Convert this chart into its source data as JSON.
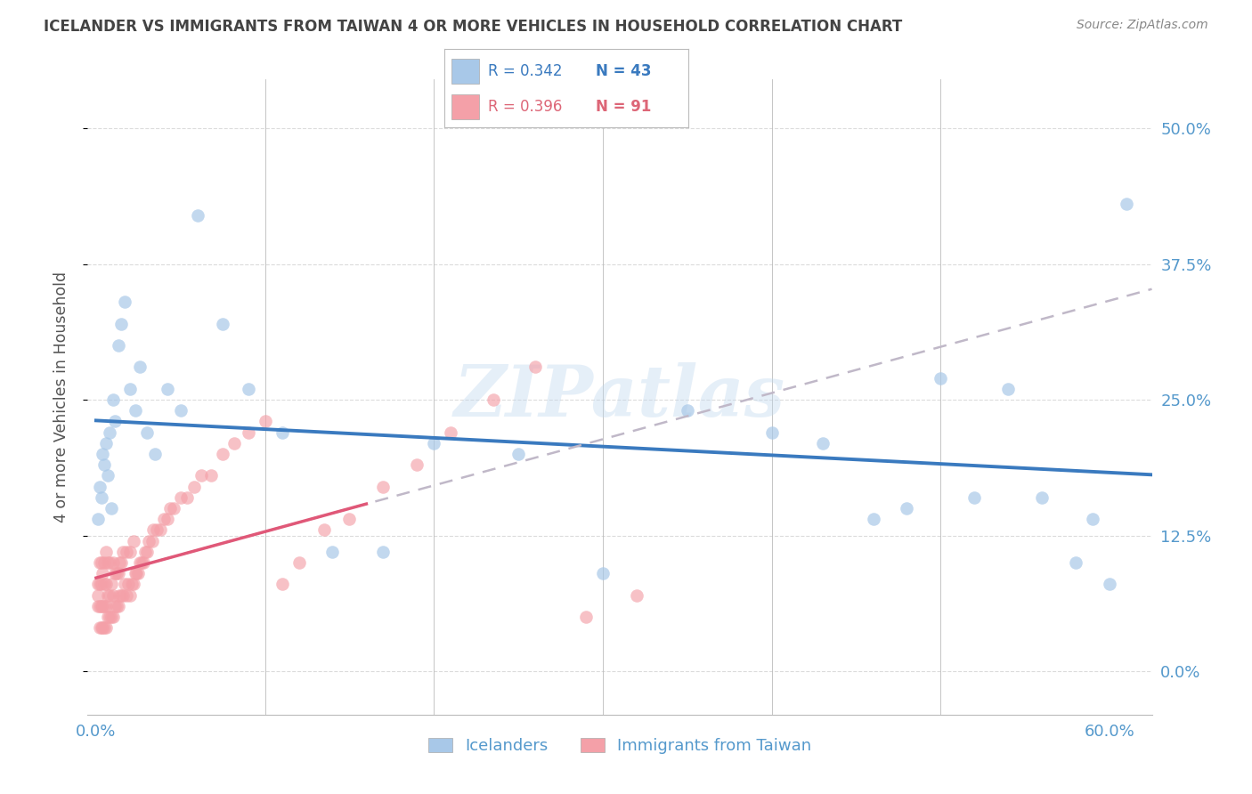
{
  "title": "ICELANDER VS IMMIGRANTS FROM TAIWAN 4 OR MORE VEHICLES IN HOUSEHOLD CORRELATION CHART",
  "source": "Source: ZipAtlas.com",
  "ylabel": "4 or more Vehicles in Household",
  "x_tick_vals": [
    0.0,
    0.6
  ],
  "x_tick_labels": [
    "0.0%",
    "60.0%"
  ],
  "y_tick_vals": [
    0.0,
    0.125,
    0.25,
    0.375,
    0.5
  ],
  "y_tick_labels": [
    "0.0%",
    "12.5%",
    "25.0%",
    "37.5%",
    "50.0%"
  ],
  "xlim": [
    -0.005,
    0.625
  ],
  "ylim": [
    -0.04,
    0.545
  ],
  "legend_icelander": "Icelanders",
  "legend_taiwan": "Immigrants from Taiwan",
  "r_icelander": "R = 0.342",
  "n_icelander": "N = 43",
  "r_taiwan": "R = 0.396",
  "n_taiwan": "N = 91",
  "blue_scatter": "#a8c8e8",
  "pink_scatter": "#f4a0a8",
  "blue_line": "#3a7abf",
  "pink_line": "#e05878",
  "dashed_line": "#c0b8c8",
  "watermark": "ZIPatlas",
  "grid_color": "#d8d8d8",
  "axis_label_color": "#5599cc",
  "title_color": "#444444",
  "source_color": "#888888",
  "ice_x": [
    0.001,
    0.002,
    0.003,
    0.004,
    0.005,
    0.006,
    0.007,
    0.008,
    0.009,
    0.01,
    0.011,
    0.013,
    0.015,
    0.017,
    0.02,
    0.023,
    0.026,
    0.03,
    0.035,
    0.042,
    0.05,
    0.06,
    0.075,
    0.09,
    0.11,
    0.14,
    0.17,
    0.2,
    0.25,
    0.3,
    0.35,
    0.4,
    0.43,
    0.46,
    0.48,
    0.5,
    0.52,
    0.54,
    0.56,
    0.58,
    0.59,
    0.6,
    0.61
  ],
  "ice_y": [
    0.14,
    0.17,
    0.16,
    0.2,
    0.19,
    0.21,
    0.18,
    0.22,
    0.15,
    0.25,
    0.23,
    0.3,
    0.32,
    0.34,
    0.26,
    0.24,
    0.28,
    0.22,
    0.2,
    0.26,
    0.24,
    0.42,
    0.32,
    0.26,
    0.22,
    0.11,
    0.11,
    0.21,
    0.2,
    0.09,
    0.24,
    0.22,
    0.21,
    0.14,
    0.15,
    0.27,
    0.16,
    0.26,
    0.16,
    0.1,
    0.14,
    0.08,
    0.43
  ],
  "tai_x": [
    0.001,
    0.001,
    0.001,
    0.002,
    0.002,
    0.002,
    0.002,
    0.003,
    0.003,
    0.003,
    0.003,
    0.004,
    0.004,
    0.004,
    0.005,
    0.005,
    0.005,
    0.005,
    0.006,
    0.006,
    0.006,
    0.006,
    0.007,
    0.007,
    0.007,
    0.008,
    0.008,
    0.008,
    0.009,
    0.009,
    0.01,
    0.01,
    0.01,
    0.011,
    0.011,
    0.012,
    0.012,
    0.013,
    0.013,
    0.014,
    0.014,
    0.015,
    0.015,
    0.016,
    0.016,
    0.017,
    0.018,
    0.018,
    0.019,
    0.02,
    0.02,
    0.021,
    0.022,
    0.022,
    0.023,
    0.024,
    0.025,
    0.026,
    0.027,
    0.028,
    0.029,
    0.03,
    0.031,
    0.033,
    0.034,
    0.036,
    0.038,
    0.04,
    0.042,
    0.044,
    0.046,
    0.05,
    0.054,
    0.058,
    0.062,
    0.068,
    0.075,
    0.082,
    0.09,
    0.1,
    0.11,
    0.12,
    0.135,
    0.15,
    0.17,
    0.19,
    0.21,
    0.235,
    0.26,
    0.29,
    0.32
  ],
  "tai_y": [
    0.06,
    0.07,
    0.08,
    0.04,
    0.06,
    0.08,
    0.1,
    0.04,
    0.06,
    0.08,
    0.1,
    0.04,
    0.06,
    0.09,
    0.04,
    0.06,
    0.08,
    0.1,
    0.04,
    0.06,
    0.08,
    0.11,
    0.05,
    0.07,
    0.1,
    0.05,
    0.07,
    0.1,
    0.05,
    0.08,
    0.05,
    0.07,
    0.1,
    0.06,
    0.09,
    0.06,
    0.09,
    0.06,
    0.09,
    0.07,
    0.1,
    0.07,
    0.1,
    0.07,
    0.11,
    0.08,
    0.07,
    0.11,
    0.08,
    0.07,
    0.11,
    0.08,
    0.08,
    0.12,
    0.09,
    0.09,
    0.09,
    0.1,
    0.1,
    0.1,
    0.11,
    0.11,
    0.12,
    0.12,
    0.13,
    0.13,
    0.13,
    0.14,
    0.14,
    0.15,
    0.15,
    0.16,
    0.16,
    0.17,
    0.18,
    0.18,
    0.2,
    0.21,
    0.22,
    0.23,
    0.08,
    0.1,
    0.13,
    0.14,
    0.17,
    0.19,
    0.22,
    0.25,
    0.28,
    0.05,
    0.07
  ]
}
